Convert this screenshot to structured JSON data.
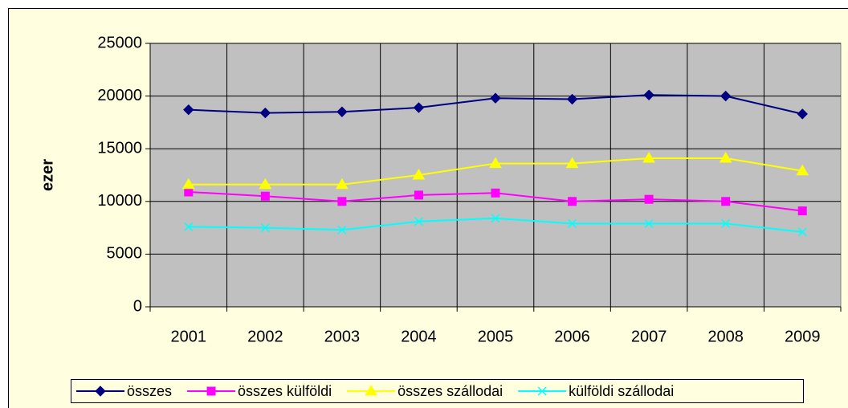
{
  "chart_data": {
    "type": "line",
    "y_label": "ezer",
    "categories": [
      "2001",
      "2002",
      "2003",
      "2004",
      "2005",
      "2006",
      "2007",
      "2008",
      "2009"
    ],
    "series": [
      {
        "name": "összes",
        "color": "#000080",
        "marker": "diamond",
        "values": [
          18700,
          18400,
          18500,
          18900,
          19800,
          19700,
          20100,
          20000,
          18300
        ]
      },
      {
        "name": "összes külföldi",
        "color": "#ff00ff",
        "marker": "square",
        "values": [
          10900,
          10500,
          10000,
          10600,
          10800,
          10000,
          10200,
          10000,
          9100
        ]
      },
      {
        "name": "összes szállodai",
        "color": "#ffff00",
        "marker": "triangle",
        "values": [
          11600,
          11600,
          11600,
          12500,
          13600,
          13600,
          14100,
          14100,
          12900
        ]
      },
      {
        "name": "külföldi szállodai",
        "color": "#00ffff",
        "marker": "x",
        "values": [
          7600,
          7500,
          7300,
          8100,
          8400,
          7900,
          7900,
          7900,
          7100
        ]
      }
    ],
    "ylim": [
      0,
      25000
    ],
    "yticks": [
      0,
      5000,
      10000,
      15000,
      20000,
      25000
    ],
    "grid": true,
    "legend": "bottom"
  }
}
